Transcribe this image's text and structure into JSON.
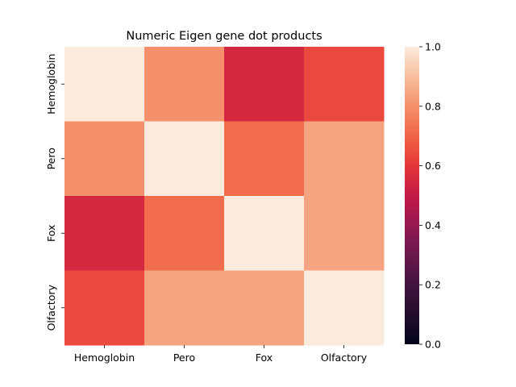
{
  "chart_data": {
    "type": "heatmap",
    "title": "Numeric Eigen gene dot products",
    "x_labels": [
      "Hemoglobin",
      "Pero",
      "Fox",
      "Olfactory"
    ],
    "y_labels": [
      "Hemoglobin",
      "Pero",
      "Fox",
      "Olfactory"
    ],
    "values": [
      [
        1.0,
        0.8,
        0.55,
        0.64
      ],
      [
        0.8,
        1.0,
        0.72,
        0.84
      ],
      [
        0.55,
        0.72,
        1.0,
        0.84
      ],
      [
        0.64,
        0.84,
        0.84,
        1.0
      ]
    ],
    "colorbar": {
      "min": 0.0,
      "max": 1.0,
      "ticks": [
        "0.0",
        "0.2",
        "0.4",
        "0.6",
        "0.8",
        "1.0"
      ],
      "colormap": "rocket"
    },
    "grid": false,
    "legend": "colorbar-right"
  }
}
